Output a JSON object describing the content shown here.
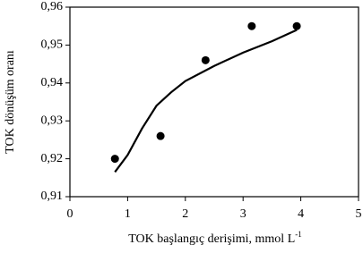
{
  "chart_data": {
    "type": "scatter",
    "x_label": "TOK başlangıç derişimi, mmol L",
    "x_label_sup": "-1",
    "y_label": "TOK dönüşüm oranı",
    "xlim": [
      0,
      5
    ],
    "xticks": [
      0,
      1,
      2,
      3,
      4,
      5
    ],
    "ylim": [
      0.91,
      0.96
    ],
    "yticks": [
      {
        "value": 0.91,
        "label": "0,91"
      },
      {
        "value": 0.92,
        "label": "0,92"
      },
      {
        "value": 0.93,
        "label": "0,93"
      },
      {
        "value": 0.94,
        "label": "0,94"
      },
      {
        "value": 0.95,
        "label": "0,95"
      },
      {
        "value": 0.96,
        "label": "0,96"
      }
    ],
    "series": [
      {
        "mode": "markers",
        "color": "#000000",
        "x": [
          0.78,
          1.57,
          2.35,
          3.15,
          3.93
        ],
        "values": [
          0.92,
          0.926,
          0.946,
          0.955,
          0.955
        ]
      },
      {
        "mode": "line",
        "color": "#000000",
        "x": [
          0.78,
          1.0,
          1.25,
          1.5,
          1.75,
          2.0,
          2.5,
          3.0,
          3.5,
          3.93
        ],
        "values": [
          0.9165,
          0.921,
          0.928,
          0.934,
          0.9375,
          0.9405,
          0.9445,
          0.948,
          0.951,
          0.954
        ]
      }
    ]
  }
}
